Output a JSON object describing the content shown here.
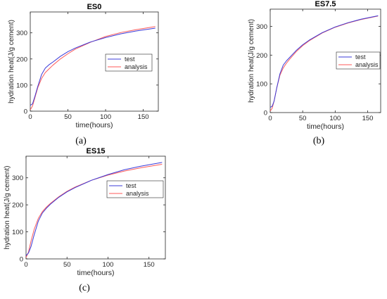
{
  "chart_data": [
    {
      "type": "line",
      "title": "ES0",
      "panel_label": "(a)",
      "xlabel": "time(hours)",
      "ylabel": "hydration heat(J/g cement)",
      "xlim": [
        0,
        170
      ],
      "ylim": [
        0,
        380
      ],
      "xticks": [
        0,
        50,
        100,
        150
      ],
      "yticks": [
        0,
        100,
        200,
        300
      ],
      "grid": false,
      "legend_position": "right",
      "series": [
        {
          "name": "test",
          "color": "#3b3bd8",
          "x": [
            0,
            3,
            6,
            10,
            15,
            20,
            25,
            30,
            40,
            50,
            60,
            80,
            100,
            120,
            140,
            166
          ],
          "y": [
            22,
            28,
            55,
            95,
            140,
            165,
            178,
            188,
            210,
            228,
            242,
            265,
            282,
            296,
            307,
            318
          ]
        },
        {
          "name": "analysis",
          "color": "#ff5a5a",
          "x": [
            0,
            3,
            6,
            10,
            15,
            20,
            25,
            30,
            40,
            50,
            60,
            80,
            100,
            120,
            140,
            166
          ],
          "y": [
            5,
            20,
            50,
            90,
            125,
            148,
            162,
            176,
            200,
            220,
            238,
            264,
            286,
            301,
            312,
            324
          ]
        }
      ]
    },
    {
      "type": "line",
      "title": "ES7.5",
      "panel_label": "(b)",
      "xlabel": "time(hours)",
      "ylabel": "hydration heat(J/g cement)",
      "xlim": [
        0,
        170
      ],
      "ylim": [
        0,
        360
      ],
      "xticks": [
        0,
        50,
        100,
        150
      ],
      "yticks": [
        0,
        100,
        200,
        300
      ],
      "grid": false,
      "legend_position": "right",
      "series": [
        {
          "name": "test",
          "color": "#3b3bd8",
          "x": [
            0,
            3,
            6,
            10,
            15,
            20,
            25,
            30,
            40,
            50,
            60,
            80,
            100,
            120,
            140,
            166
          ],
          "y": [
            18,
            22,
            40,
            85,
            135,
            165,
            180,
            192,
            216,
            236,
            252,
            278,
            298,
            313,
            325,
            337
          ]
        },
        {
          "name": "analysis",
          "color": "#ff5a5a",
          "x": [
            0,
            3,
            6,
            10,
            15,
            20,
            25,
            30,
            40,
            50,
            60,
            80,
            100,
            120,
            140,
            166
          ],
          "y": [
            5,
            15,
            40,
            85,
            130,
            155,
            172,
            186,
            212,
            233,
            250,
            277,
            297,
            312,
            324,
            336
          ]
        }
      ]
    },
    {
      "type": "line",
      "title": "ES15",
      "panel_label": "(c)",
      "xlabel": "time(hours)",
      "ylabel": "hydration heat(J/g cement)",
      "xlim": [
        0,
        170
      ],
      "ylim": [
        0,
        380
      ],
      "xticks": [
        0,
        50,
        100,
        150
      ],
      "yticks": [
        0,
        100,
        200,
        300
      ],
      "grid": false,
      "legend_position": "right",
      "series": [
        {
          "name": "test",
          "color": "#3b3bd8",
          "x": [
            0,
            3,
            6,
            10,
            15,
            20,
            25,
            30,
            40,
            50,
            60,
            80,
            100,
            120,
            140,
            166
          ],
          "y": [
            12,
            22,
            45,
            90,
            140,
            170,
            188,
            203,
            228,
            248,
            264,
            291,
            312,
            330,
            343,
            357
          ]
        },
        {
          "name": "analysis",
          "color": "#ff5a5a",
          "x": [
            0,
            3,
            6,
            10,
            15,
            20,
            25,
            30,
            40,
            50,
            60,
            80,
            100,
            120,
            140,
            166
          ],
          "y": [
            5,
            25,
            65,
            110,
            150,
            175,
            192,
            206,
            230,
            250,
            266,
            291,
            310,
            325,
            337,
            350
          ]
        }
      ]
    }
  ]
}
